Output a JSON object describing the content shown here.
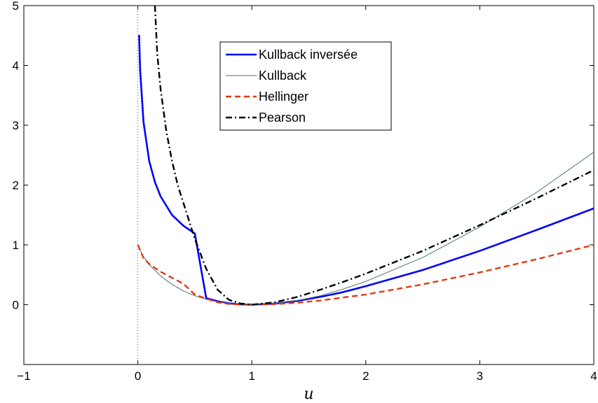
{
  "chart_data": {
    "type": "line",
    "title": "",
    "xlabel": "u",
    "ylabel": "",
    "xlim": [
      -1,
      4
    ],
    "ylim": [
      -1,
      5
    ],
    "x_ticks": [
      -1,
      0,
      1,
      2,
      3,
      4
    ],
    "y_ticks": [
      0,
      1,
      2,
      3,
      4,
      5
    ],
    "x_tick_labels": [
      "−1",
      "0",
      "1",
      "2",
      "3",
      "4"
    ],
    "y_tick_labels": [
      "0",
      "1",
      "2",
      "3",
      "4",
      "5"
    ],
    "grid": false,
    "legend_position": "top-center",
    "reference_line": {
      "x": 0,
      "style": "dotted"
    },
    "series": [
      {
        "name": "Kullback inversée",
        "color": "#0000ff",
        "style": "solid-thick",
        "x": [
          0.0111,
          0.02,
          0.05,
          0.1,
          0.15,
          0.2,
          0.3,
          0.4,
          0.5,
          0.6,
          0.7,
          0.8,
          0.9,
          1.0,
          1.2,
          1.4,
          1.6,
          1.8,
          2.0,
          2.5,
          3.0,
          3.5,
          4.0
        ],
        "y": [
          4.51,
          3.93,
          3.05,
          2.4,
          2.05,
          1.81,
          1.5,
          1.32,
          1.19,
          0.11,
          0.057,
          0.023,
          0.0054,
          0.0,
          0.018,
          0.064,
          0.13,
          0.21,
          0.31,
          0.58,
          0.9,
          1.25,
          1.61
        ]
      },
      {
        "name": "Kullback",
        "color": "#4a7a60",
        "style": "solid-thin",
        "x": [
          0.0,
          0.05,
          0.1,
          0.2,
          0.3,
          0.4,
          0.5,
          0.6,
          0.7,
          0.8,
          0.9,
          1.0,
          1.2,
          1.4,
          1.6,
          1.8,
          2.0,
          2.5,
          3.0,
          3.5,
          4.0
        ],
        "y": [
          1.0,
          0.8,
          0.67,
          0.48,
          0.34,
          0.23,
          0.15,
          0.09,
          0.05,
          0.02,
          0.005,
          0.0,
          0.02,
          0.07,
          0.15,
          0.26,
          0.39,
          0.79,
          1.3,
          1.88,
          2.55
        ]
      },
      {
        "name": "Hellinger",
        "color": "#e03a10",
        "style": "dashed",
        "x": [
          0.0,
          0.05,
          0.1,
          0.2,
          0.3,
          0.4,
          0.5,
          0.6,
          0.7,
          0.8,
          0.9,
          1.0,
          1.2,
          1.4,
          1.6,
          1.8,
          2.0,
          2.5,
          3.0,
          3.5,
          4.0
        ],
        "y": [
          1.0,
          0.78,
          0.68,
          0.55,
          0.45,
          0.35,
          0.17,
          0.1,
          0.04,
          0.012,
          0.003,
          0.0,
          0.009,
          0.033,
          0.07,
          0.12,
          0.17,
          0.34,
          0.54,
          0.76,
          1.0
        ]
      },
      {
        "name": "Pearson",
        "color": "#000000",
        "style": "dash-dot",
        "x": [
          0.15,
          0.17,
          0.2,
          0.25,
          0.3,
          0.35,
          0.4,
          0.5,
          0.6,
          0.7,
          0.8,
          0.9,
          1.0,
          1.2,
          1.4,
          1.6,
          1.8,
          2.0,
          2.5,
          3.0,
          3.5,
          4.0
        ],
        "y": [
          5.0,
          4.2,
          3.6,
          2.9,
          2.4,
          2.0,
          1.7,
          1.1,
          0.6,
          0.25,
          0.08,
          0.02,
          0.0,
          0.04,
          0.13,
          0.25,
          0.38,
          0.52,
          0.9,
          1.33,
          1.78,
          2.25
        ]
      }
    ]
  }
}
